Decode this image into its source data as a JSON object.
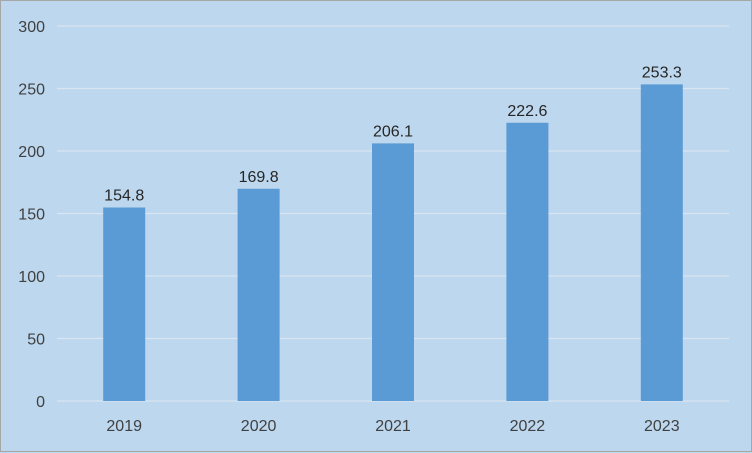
{
  "chart_data": {
    "type": "bar",
    "categories": [
      "2019",
      "2020",
      "2021",
      "2022",
      "2023"
    ],
    "values": [
      154.8,
      169.8,
      206.1,
      222.6,
      253.3
    ],
    "data_labels": [
      "154.8",
      "169.8",
      "206.1",
      "222.6",
      "253.3"
    ],
    "title": "",
    "xlabel": "",
    "ylabel": "",
    "ylim": [
      0,
      300
    ],
    "yticks": [
      0,
      50,
      100,
      150,
      200,
      250,
      300
    ],
    "ytick_labels": [
      "0",
      "50",
      "100",
      "150",
      "200",
      "250",
      "300"
    ],
    "grid": true,
    "legend": "none",
    "colors": {
      "bar": "#5b9bd5",
      "background": "#bdd7ee",
      "grid": "#d9e6f2"
    }
  }
}
